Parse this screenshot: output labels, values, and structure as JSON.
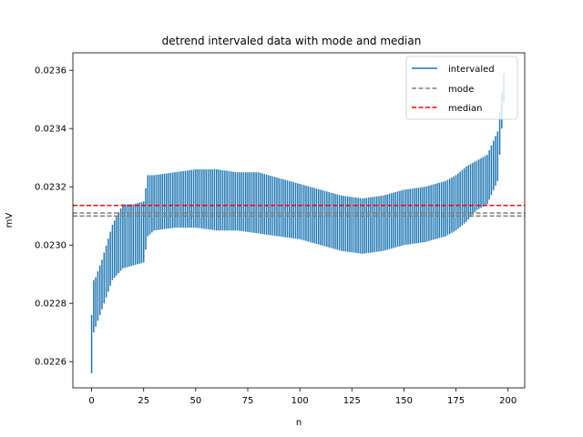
{
  "chart_data": {
    "type": "line",
    "title": "detrend intervaled data with mode and median",
    "xlabel": "n",
    "ylabel": "mV",
    "xlim": [
      -9,
      208
    ],
    "ylim": [
      0.02251,
      0.02366
    ],
    "xticks": [
      0,
      25,
      50,
      75,
      100,
      125,
      150,
      175,
      200
    ],
    "xtick_labels": [
      "0",
      "25",
      "50",
      "75",
      "100",
      "125",
      "150",
      "175",
      "200"
    ],
    "yticks": [
      0.0226,
      0.0228,
      0.023,
      0.0232,
      0.0234,
      0.0236
    ],
    "ytick_labels": [
      "0.0226",
      "0.0228",
      "0.0230",
      "0.0232",
      "0.0234",
      "0.0236"
    ],
    "grid": false,
    "legend_position": "top-right",
    "legend": [
      "intervaled",
      "mode",
      "median"
    ],
    "series": [
      {
        "name": "intervaled",
        "style": "vertical-intervals",
        "color": "#1f77b4",
        "n_start": 0,
        "n_end": 198,
        "n_step": 1,
        "envelope_n": [
          0,
          1,
          2,
          5,
          10,
          15,
          20,
          25,
          27,
          30,
          40,
          50,
          60,
          70,
          80,
          90,
          100,
          110,
          120,
          130,
          140,
          150,
          160,
          170,
          175,
          180,
          185,
          190,
          195,
          198
        ],
        "upper": [
          0.02276,
          0.02288,
          0.02289,
          0.02295,
          0.02307,
          0.02314,
          0.02314,
          0.02315,
          0.02324,
          0.02324,
          0.02325,
          0.02326,
          0.02326,
          0.02325,
          0.02325,
          0.02323,
          0.02321,
          0.02319,
          0.02317,
          0.02316,
          0.02317,
          0.02319,
          0.0232,
          0.02322,
          0.02324,
          0.02327,
          0.02329,
          0.02331,
          0.02339,
          0.02359
        ],
        "lower": [
          0.02256,
          0.0227,
          0.02272,
          0.02278,
          0.02288,
          0.02292,
          0.02293,
          0.02294,
          0.02303,
          0.02305,
          0.02306,
          0.02306,
          0.02305,
          0.02305,
          0.02304,
          0.02303,
          0.02302,
          0.023,
          0.02298,
          0.02297,
          0.02298,
          0.023,
          0.02301,
          0.02303,
          0.02305,
          0.02308,
          0.02312,
          0.02314,
          0.02322,
          0.02349
        ]
      },
      {
        "name": "mode",
        "style": "dashed-hlines",
        "color": "#808080",
        "y": [
          0.0231,
          0.02311
        ],
        "x_range": [
          -9,
          208
        ]
      },
      {
        "name": "median",
        "style": "dashed-hline",
        "color": "#ff0000",
        "y": [
          0.023136
        ],
        "x_range": [
          -9,
          208
        ]
      }
    ]
  }
}
